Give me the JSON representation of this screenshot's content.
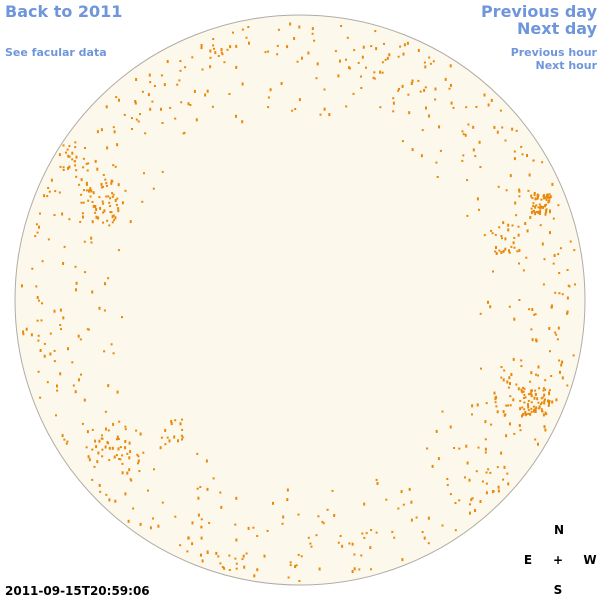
{
  "header": {
    "back_link": "Back to 2011",
    "facular_link": "See facular data",
    "previous_day": "Previous day",
    "next_day": "Next day",
    "previous_hour": "Previous hour",
    "next_hour": "Next hour"
  },
  "compass": {
    "north": "N",
    "east": "E",
    "center": "+",
    "west": "W",
    "south": "S"
  },
  "timestamp": "2011-09-15T20:59:06"
}
